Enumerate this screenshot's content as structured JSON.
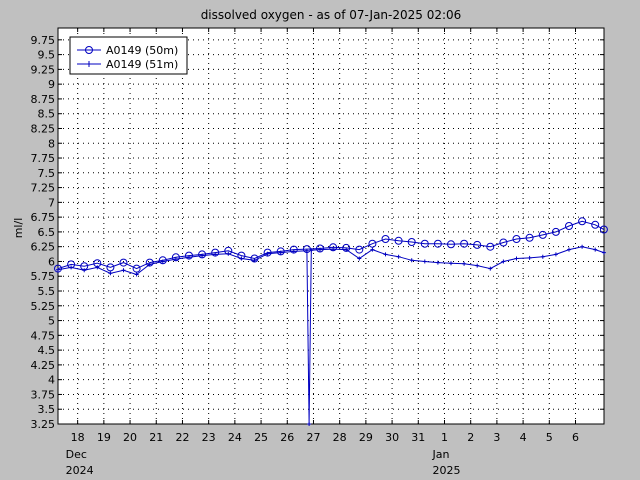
{
  "chart_data": {
    "type": "line",
    "title": "dissolved oxygen - as of 07-Jan-2025 02:06",
    "ylabel": "ml/l",
    "xlabel": "",
    "ylim": [
      3.25,
      9.95
    ],
    "xlim": [
      "2024-12-17T06:00",
      "2025-01-07T02:06"
    ],
    "grid": true,
    "legend_position": "top-left",
    "yticks": [
      "3.25",
      "3.5",
      "3.75",
      "4",
      "4.25",
      "4.5",
      "4.75",
      "5",
      "5.25",
      "5.5",
      "5.75",
      "6",
      "6.25",
      "6.5",
      "6.75",
      "7",
      "7.25",
      "7.5",
      "7.75",
      "8",
      "8.25",
      "8.5",
      "8.75",
      "9",
      "9.25",
      "9.5",
      "9.75"
    ],
    "xticks": [
      {
        "date": "2024-12-18",
        "label": "18"
      },
      {
        "date": "2024-12-19",
        "label": "19"
      },
      {
        "date": "2024-12-20",
        "label": "20"
      },
      {
        "date": "2024-12-21",
        "label": "21"
      },
      {
        "date": "2024-12-22",
        "label": "22"
      },
      {
        "date": "2024-12-23",
        "label": "23"
      },
      {
        "date": "2024-12-24",
        "label": "24"
      },
      {
        "date": "2024-12-25",
        "label": "25"
      },
      {
        "date": "2024-12-26",
        "label": "26"
      },
      {
        "date": "2024-12-27",
        "label": "27"
      },
      {
        "date": "2024-12-28",
        "label": "28"
      },
      {
        "date": "2024-12-29",
        "label": "29"
      },
      {
        "date": "2024-12-30",
        "label": "30"
      },
      {
        "date": "2024-12-31",
        "label": "31"
      },
      {
        "date": "2025-01-01",
        "label": "1"
      },
      {
        "date": "2025-01-02",
        "label": "2"
      },
      {
        "date": "2025-01-03",
        "label": "3"
      },
      {
        "date": "2025-01-04",
        "label": "4"
      },
      {
        "date": "2025-01-05",
        "label": "5"
      },
      {
        "date": "2025-01-06",
        "label": "6"
      }
    ],
    "month_labels": [
      {
        "date": "2024-12-18",
        "month": "Dec",
        "year": "2024"
      },
      {
        "date": "2025-01-01",
        "month": "Jan",
        "year": "2025"
      }
    ],
    "series": [
      {
        "name": "A0149 (50m)",
        "marker": "circle",
        "color": "#0000c0",
        "points": [
          [
            "2024-12-17T06:00",
            5.88
          ],
          [
            "2024-12-17T18:00",
            5.95
          ],
          [
            "2024-12-18T06:00",
            5.92
          ],
          [
            "2024-12-18T18:00",
            5.97
          ],
          [
            "2024-12-19T06:00",
            5.9
          ],
          [
            "2024-12-19T18:00",
            5.98
          ],
          [
            "2024-12-20T06:00",
            5.88
          ],
          [
            "2024-12-20T18:00",
            5.98
          ],
          [
            "2024-12-21T06:00",
            6.02
          ],
          [
            "2024-12-21T18:00",
            6.07
          ],
          [
            "2024-12-22T06:00",
            6.1
          ],
          [
            "2024-12-22T18:00",
            6.12
          ],
          [
            "2024-12-23T06:00",
            6.15
          ],
          [
            "2024-12-23T18:00",
            6.18
          ],
          [
            "2024-12-24T06:00",
            6.1
          ],
          [
            "2024-12-24T18:00",
            6.05
          ],
          [
            "2024-12-25T06:00",
            6.15
          ],
          [
            "2024-12-25T18:00",
            6.17
          ],
          [
            "2024-12-26T06:00",
            6.2
          ],
          [
            "2024-12-26T18:00",
            6.21
          ],
          [
            "2024-12-27T06:00",
            6.22
          ],
          [
            "2024-12-27T18:00",
            6.24
          ],
          [
            "2024-12-28T06:00",
            6.23
          ],
          [
            "2024-12-28T18:00",
            6.2
          ],
          [
            "2024-12-29T06:00",
            6.3
          ],
          [
            "2024-12-29T18:00",
            6.38
          ],
          [
            "2024-12-30T06:00",
            6.35
          ],
          [
            "2024-12-30T18:00",
            6.33
          ],
          [
            "2024-12-31T06:00",
            6.3
          ],
          [
            "2024-12-31T18:00",
            6.3
          ],
          [
            "2025-01-01T06:00",
            6.29
          ],
          [
            "2025-01-01T18:00",
            6.3
          ],
          [
            "2025-01-02T06:00",
            6.28
          ],
          [
            "2025-01-02T18:00",
            6.25
          ],
          [
            "2025-01-03T06:00",
            6.32
          ],
          [
            "2025-01-03T18:00",
            6.38
          ],
          [
            "2025-01-04T06:00",
            6.4
          ],
          [
            "2025-01-04T18:00",
            6.45
          ],
          [
            "2025-01-05T06:00",
            6.5
          ],
          [
            "2025-01-05T18:00",
            6.6
          ],
          [
            "2025-01-06T06:00",
            6.68
          ],
          [
            "2025-01-06T18:00",
            6.62
          ],
          [
            "2025-01-07T02:00",
            6.54
          ]
        ]
      },
      {
        "name": "A0149 (51m)",
        "marker": "plus",
        "color": "#0000c0",
        "points": [
          [
            "2024-12-17T06:00",
            5.86
          ],
          [
            "2024-12-17T18:00",
            5.9
          ],
          [
            "2024-12-18T06:00",
            5.85
          ],
          [
            "2024-12-18T18:00",
            5.9
          ],
          [
            "2024-12-19T06:00",
            5.8
          ],
          [
            "2024-12-19T18:00",
            5.85
          ],
          [
            "2024-12-20T06:00",
            5.78
          ],
          [
            "2024-12-20T18:00",
            5.95
          ],
          [
            "2024-12-21T06:00",
            6.0
          ],
          [
            "2024-12-21T18:00",
            6.04
          ],
          [
            "2024-12-22T06:00",
            6.07
          ],
          [
            "2024-12-22T18:00",
            6.1
          ],
          [
            "2024-12-23T06:00",
            6.12
          ],
          [
            "2024-12-23T18:00",
            6.13
          ],
          [
            "2024-12-24T06:00",
            6.05
          ],
          [
            "2024-12-24T18:00",
            6.02
          ],
          [
            "2024-12-25T06:00",
            6.13
          ],
          [
            "2024-12-25T18:00",
            6.15
          ],
          [
            "2024-12-26T06:00",
            6.17
          ],
          [
            "2024-12-26T18:00",
            6.18
          ],
          [
            "2024-12-26T20:00",
            3.25
          ],
          [
            "2024-12-26T22:00",
            6.19
          ],
          [
            "2024-12-27T06:00",
            6.2
          ],
          [
            "2024-12-27T18:00",
            6.21
          ],
          [
            "2024-12-28T06:00",
            6.2
          ],
          [
            "2024-12-28T18:00",
            6.05
          ],
          [
            "2024-12-29T06:00",
            6.2
          ],
          [
            "2024-12-29T18:00",
            6.12
          ],
          [
            "2024-12-30T06:00",
            6.08
          ],
          [
            "2024-12-30T18:00",
            6.02
          ],
          [
            "2024-12-31T06:00",
            6.0
          ],
          [
            "2024-12-31T18:00",
            5.98
          ],
          [
            "2025-01-01T06:00",
            5.97
          ],
          [
            "2025-01-01T18:00",
            5.96
          ],
          [
            "2025-01-02T06:00",
            5.93
          ],
          [
            "2025-01-02T18:00",
            5.88
          ],
          [
            "2025-01-03T06:00",
            6.0
          ],
          [
            "2025-01-03T18:00",
            6.05
          ],
          [
            "2025-01-04T06:00",
            6.06
          ],
          [
            "2025-01-04T18:00",
            6.08
          ],
          [
            "2025-01-05T06:00",
            6.12
          ],
          [
            "2025-01-05T18:00",
            6.2
          ],
          [
            "2025-01-06T06:00",
            6.25
          ],
          [
            "2025-01-06T18:00",
            6.2
          ],
          [
            "2025-01-07T02:00",
            6.15
          ]
        ]
      }
    ]
  }
}
